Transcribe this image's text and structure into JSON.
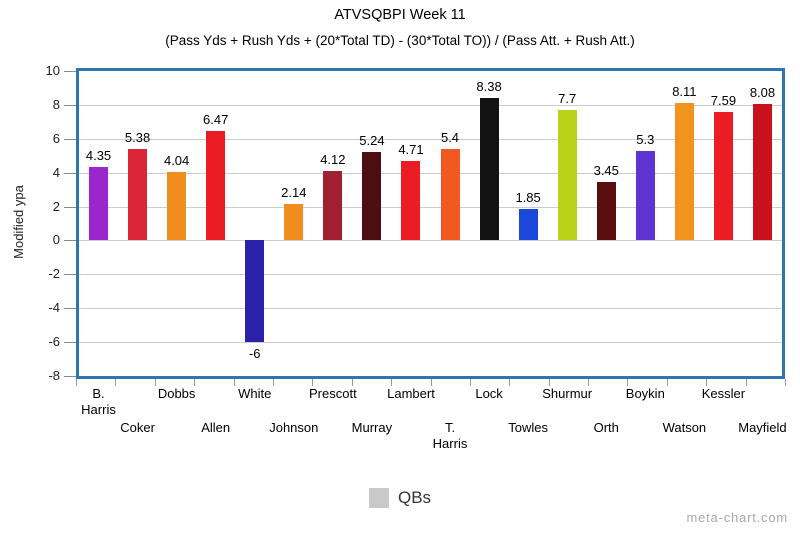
{
  "header": {
    "title": "ATVSQBPI Week 11",
    "subtitle": "(Pass Yds + Rush Yds + (20*Total TD) - (30*Total TO)) / (Pass Att. + Rush Att.)"
  },
  "chart_data": {
    "type": "bar",
    "title": "ATVSQBPI Week 11",
    "subtitle": "(Pass Yds + Rush Yds + (20*Total TD) - (30*Total TO)) / (Pass Att. + Rush Att.)",
    "xlabel": "",
    "ylabel": "Modified ypa",
    "ylim": [
      -8,
      10
    ],
    "ytick_step": 2,
    "grid": true,
    "plot_border_color": "#2d76ab",
    "gridline_color": "#cccccc",
    "categories": [
      "B. Harris",
      "Coker",
      "Dobbs",
      "Allen",
      "White",
      "Johnson",
      "Prescott",
      "Murray",
      "Lambert",
      "T. Harris",
      "Lock",
      "Towles",
      "Shurmur",
      "Orth",
      "Boykin",
      "Watson",
      "Kessler",
      "Mayfield"
    ],
    "tick_labels": [
      "B.\nHarris",
      "Coker",
      "Dobbs",
      "Allen",
      "White",
      "Johnson",
      "Prescott",
      "Murray",
      "Lambert",
      "T.\nHarris",
      "Lock",
      "Towles",
      "Shurmur",
      "Orth",
      "Boykin",
      "Watson",
      "Kessler",
      "Mayfield"
    ],
    "values": [
      4.35,
      5.38,
      4.04,
      6.47,
      -6,
      2.14,
      4.12,
      5.24,
      4.71,
      5.4,
      8.38,
      1.85,
      7.7,
      3.45,
      5.3,
      8.11,
      7.59,
      8.08
    ],
    "bar_colors": [
      "#9a27ce",
      "#db2637",
      "#f18d1e",
      "#ec1c24",
      "#2b21a8",
      "#f18d1e",
      "#a01f30",
      "#4e0d11",
      "#ec1c24",
      "#f1591f",
      "#121212",
      "#1c47db",
      "#bcd119",
      "#5a0e0e",
      "#5f35d2",
      "#f0941e",
      "#ec1c24",
      "#c8111a"
    ],
    "legend": {
      "label": "QBs",
      "swatch_color": "#c9c9c9",
      "position": "bottom-center"
    }
  },
  "watermark": "meta-chart.com"
}
